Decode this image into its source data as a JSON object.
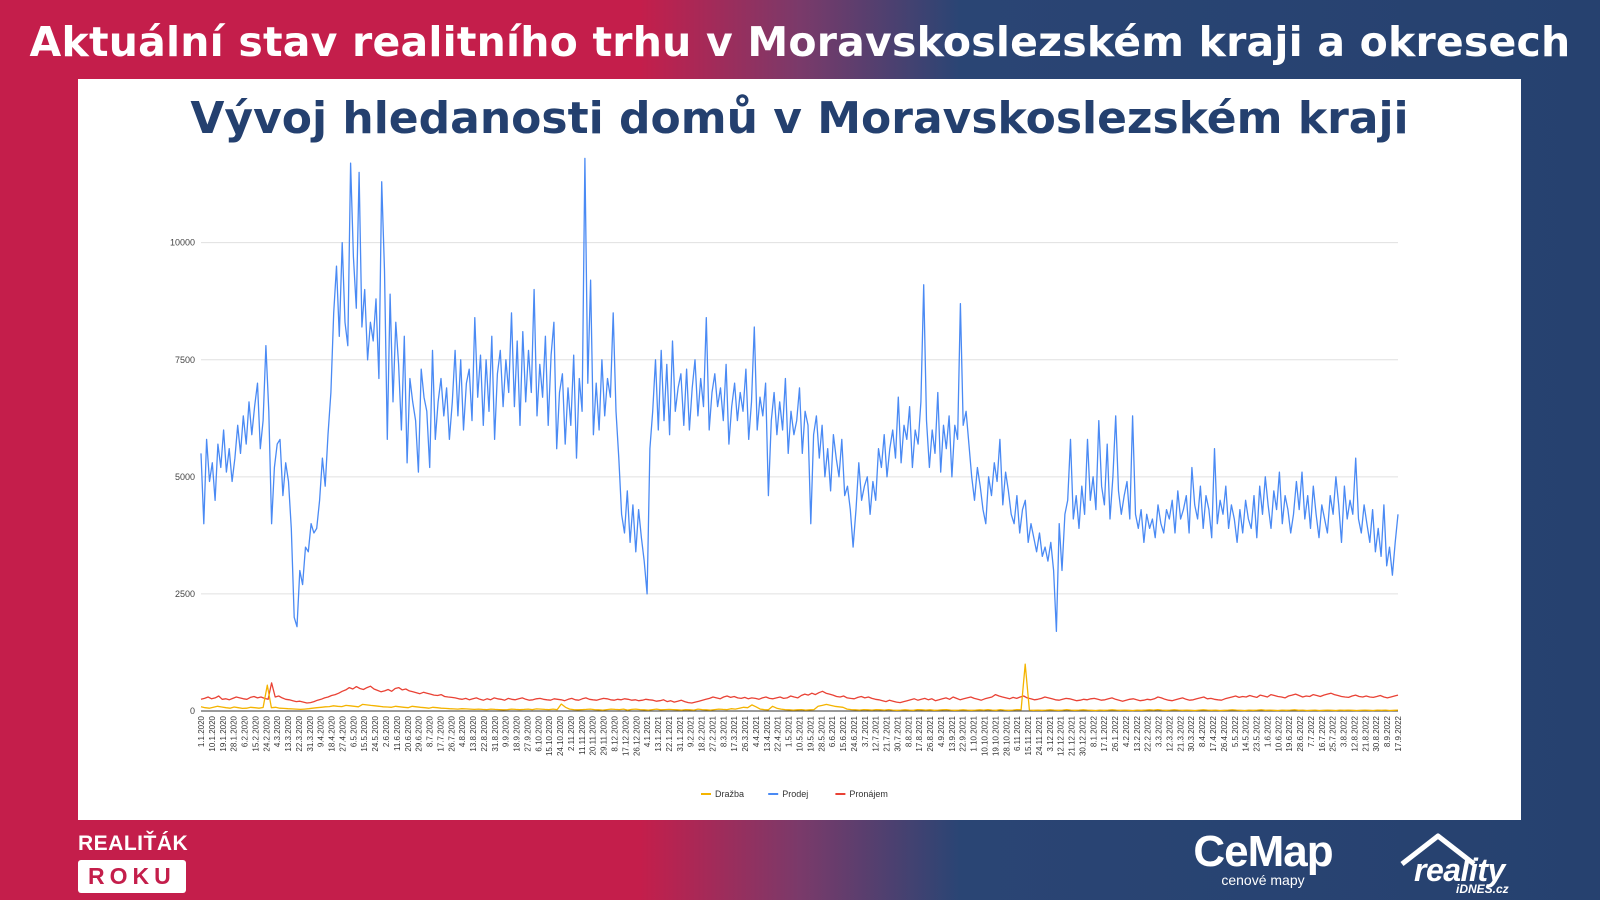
{
  "header": {
    "title": "Aktuální stav realitního trhu v Moravskoslezském kraji a okresech"
  },
  "chart_data": {
    "type": "line",
    "title": "Vývoj hledanosti domů v Moravskoslezském kraji",
    "xlabel": "",
    "ylabel": "",
    "ylim": [
      0,
      12000
    ],
    "yticks": [
      0,
      2500,
      5000,
      7500,
      10000
    ],
    "grid": true,
    "legend_position": "bottom",
    "x_tick_labels": [
      "1.1.2020",
      "10.1.2020",
      "19.1.2020",
      "28.1.2020",
      "6.2.2020",
      "15.2.2020",
      "24.2.2020",
      "4.3.2020",
      "13.3.2020",
      "22.3.2020",
      "31.3.2020",
      "9.4.2020",
      "18.4.2020",
      "27.4.2020",
      "6.5.2020",
      "15.5.2020",
      "24.5.2020",
      "2.6.2020",
      "11.6.2020",
      "20.6.2020",
      "29.6.2020",
      "8.7.2020",
      "17.7.2020",
      "26.7.2020",
      "4.8.2020",
      "13.8.2020",
      "22.8.2020",
      "31.8.2020",
      "9.9.2020",
      "18.9.2020",
      "27.9.2020",
      "6.10.2020",
      "15.10.2020",
      "24.10.2020",
      "2.11.2020",
      "11.11.2020",
      "20.11.2020",
      "29.11.2020",
      "8.12.2020",
      "17.12.2020",
      "26.12.2020",
      "4.1.2021",
      "13.1.2021",
      "22.1.2021",
      "31.1.2021",
      "9.2.2021",
      "18.2.2021",
      "27.2.2021",
      "8.3.2021",
      "17.3.2021",
      "26.3.2021",
      "4.4.2021",
      "13.4.2021",
      "22.4.2021",
      "1.5.2021",
      "10.5.2021",
      "19.5.2021",
      "28.5.2021",
      "6.6.2021",
      "15.6.2021",
      "24.6.2021",
      "3.7.2021",
      "12.7.2021",
      "21.7.2021",
      "30.7.2021",
      "8.8.2021",
      "17.8.2021",
      "26.8.2021",
      "4.9.2021",
      "13.9.2021",
      "22.9.2021",
      "1.10.2021",
      "10.10.2021",
      "19.10.2021",
      "28.10.2021",
      "6.11.2021",
      "15.11.2021",
      "24.11.2021",
      "3.12.2021",
      "12.12.2021",
      "21.12.2021",
      "30.12.2021",
      "8.1.2022",
      "17.1.2022",
      "26.1.2022",
      "4.2.2022",
      "13.2.2022",
      "22.2.2022",
      "3.3.2022",
      "12.3.2022",
      "21.3.2022",
      "30.3.2022",
      "8.4.2022",
      "17.4.2022",
      "26.4.2022",
      "5.5.2022",
      "14.5.2022",
      "23.5.2022",
      "1.6.2022",
      "10.6.2022",
      "19.6.2022",
      "28.6.2022",
      "7.7.2022",
      "16.7.2022",
      "25.7.2022",
      "3.8.2022",
      "12.8.2022",
      "21.8.2022",
      "30.8.2022",
      "8.9.2022",
      "17.9.2022"
    ],
    "series": [
      {
        "name": "Dražba",
        "color": "#f4b400",
        "values": [
          90,
          70,
          60,
          80,
          100,
          85,
          70,
          60,
          85,
          70,
          55,
          60,
          80,
          70,
          60,
          75,
          550,
          70,
          80,
          60,
          55,
          50,
          45,
          40,
          35,
          40,
          50,
          60,
          70,
          80,
          90,
          95,
          110,
          100,
          95,
          120,
          110,
          100,
          90,
          140,
          130,
          120,
          110,
          100,
          90,
          85,
          80,
          100,
          90,
          80,
          70,
          100,
          90,
          80,
          70,
          60,
          80,
          70,
          60,
          55,
          50,
          45,
          40,
          50,
          45,
          40,
          35,
          40,
          35,
          30,
          40,
          35,
          30,
          25,
          30,
          40,
          35,
          30,
          35,
          40,
          30,
          45,
          40,
          35,
          30,
          40,
          30,
          150,
          80,
          40,
          30,
          25,
          30,
          35,
          40,
          30,
          25,
          20,
          30,
          40,
          35,
          30,
          40,
          20,
          35,
          40,
          30,
          25,
          20,
          30,
          40,
          25,
          30,
          35,
          30,
          25,
          20,
          30,
          25,
          20,
          40,
          30,
          25,
          20,
          30,
          40,
          35,
          30,
          50,
          40,
          60,
          80,
          70,
          130,
          90,
          40,
          30,
          25,
          100,
          60,
          40,
          30,
          25,
          20,
          25,
          30,
          20,
          25,
          30,
          100,
          120,
          140,
          120,
          100,
          90,
          80,
          40,
          30,
          25,
          20,
          30,
          25,
          20,
          30,
          25,
          20,
          30,
          20,
          15,
          20,
          25,
          20,
          15,
          30,
          25,
          20,
          25,
          15,
          20,
          25,
          30,
          20,
          15,
          20,
          25,
          20,
          15,
          20,
          25,
          20,
          30,
          20,
          15,
          30,
          20,
          15,
          20,
          30,
          25,
          1000,
          20,
          15,
          20,
          15,
          20,
          25,
          20,
          15,
          20,
          30,
          20,
          15,
          20,
          25,
          20,
          15,
          10,
          20,
          15,
          20,
          25,
          20,
          15,
          20,
          15,
          10,
          20,
          15,
          20,
          25,
          20,
          30,
          20,
          15,
          20,
          25,
          20,
          15,
          20,
          15,
          10,
          20,
          25,
          20,
          15,
          20,
          10,
          15,
          20,
          25,
          20,
          15,
          10,
          20,
          15,
          20,
          25,
          15,
          20,
          15,
          10,
          20,
          15,
          20,
          25,
          15,
          20,
          10,
          15,
          20,
          10,
          15,
          20,
          15,
          10,
          20,
          15,
          20,
          15,
          10,
          15,
          20,
          15,
          10,
          20,
          15,
          20,
          10,
          15,
          20
        ]
      },
      {
        "name": "Prodej",
        "color": "#4a8af4",
        "values": [
          5500,
          4000,
          5800,
          4900,
          5300,
          4500,
          5700,
          5200,
          6000,
          5100,
          5600,
          4900,
          5400,
          6100,
          5500,
          6300,
          5700,
          6600,
          5900,
          6500,
          7000,
          5600,
          6200,
          7800,
          6400,
          4000,
          5200,
          5700,
          5800,
          4600,
          5300,
          4900,
          3900,
          2000,
          1800,
          3000,
          2700,
          3500,
          3400,
          4000,
          3800,
          3900,
          4500,
          5400,
          4800,
          5900,
          6800,
          8500,
          9500,
          8000,
          10000,
          8300,
          7800,
          11700,
          9700,
          8600,
          11500,
          8200,
          9000,
          7500,
          8300,
          7900,
          8800,
          7100,
          11300,
          9400,
          5800,
          8900,
          6600,
          8300,
          7400,
          6000,
          8000,
          5300,
          7100,
          6600,
          6200,
          5100,
          7300,
          6700,
          6400,
          5200,
          7700,
          5800,
          6600,
          7100,
          6300,
          6900,
          5800,
          6600,
          7700,
          6300,
          7500,
          6000,
          7000,
          7300,
          6200,
          8400,
          6700,
          7600,
          6100,
          7500,
          6400,
          8000,
          5800,
          7200,
          7700,
          6500,
          7500,
          6800,
          8500,
          6500,
          7900,
          6100,
          8100,
          6600,
          7700,
          6800,
          9000,
          6300,
          7400,
          6700,
          8000,
          6100,
          7600,
          8300,
          5600,
          6800,
          7200,
          5700,
          6900,
          6100,
          7600,
          5400,
          7100,
          6400,
          11800,
          7000,
          9200,
          5900,
          7000,
          6000,
          7500,
          6300,
          7100,
          6700,
          8500,
          6400,
          5400,
          4200,
          3800,
          4700,
          3600,
          4400,
          3400,
          4300,
          3700,
          3200,
          2500,
          5600,
          6400,
          7500,
          6000,
          7700,
          6200,
          7400,
          5900,
          7900,
          6400,
          6900,
          7200,
          6100,
          7300,
          6000,
          6900,
          7500,
          6300,
          7100,
          6500,
          8400,
          6000,
          6800,
          7200,
          6500,
          6900,
          6200,
          7400,
          5700,
          6500,
          7000,
          6200,
          6800,
          6400,
          7300,
          5800,
          6600,
          8200,
          6000,
          6700,
          6300,
          7000,
          4600,
          6200,
          6800,
          5900,
          6600,
          6000,
          7100,
          5500,
          6400,
          5900,
          6200,
          6900,
          5500,
          6400,
          6100,
          4000,
          5900,
          6300,
          5400,
          6100,
          5000,
          5600,
          4700,
          5900,
          5400,
          5000,
          5800,
          4600,
          4800,
          4300,
          3500,
          4300,
          5300,
          4500,
          4800,
          5000,
          4200,
          4900,
          4500,
          5600,
          5200,
          5900,
          5000,
          5600,
          6000,
          5400,
          6700,
          5300,
          6100,
          5800,
          6500,
          5200,
          6000,
          5700,
          6600,
          9100,
          6200,
          5200,
          6000,
          5500,
          6800,
          5100,
          6100,
          5600,
          6300,
          5000,
          6100,
          5800,
          8700,
          6100,
          6400,
          5700,
          5000,
          4500,
          5200,
          4800,
          4300,
          4000,
          5000,
          4600,
          5300,
          4900,
          5800,
          4400,
          5100,
          4700,
          4200,
          4000,
          4600,
          3800,
          4300,
          4500,
          3600,
          4000,
          3700,
          3400,
          3800,
          3300,
          3500,
          3200,
          3600,
          3000,
          1700,
          4000,
          3000,
          4200,
          4500,
          5800,
          4100,
          4600,
          3900,
          4800,
          4200,
          5800,
          4500,
          5000,
          4300,
          6200,
          4800,
          4400,
          5700,
          4100,
          5000,
          6300,
          4700,
          4200,
          4600,
          4900,
          4100,
          6300,
          4200,
          3900,
          4300,
          3600,
          4200,
          3900,
          4100,
          3700,
          4400,
          4000,
          3800,
          4300,
          4100,
          4500,
          3800,
          4700,
          4100,
          4300,
          4600,
          3800,
          5200,
          4400,
          4100,
          4800,
          3900,
          4600,
          4300,
          3700,
          5600,
          4000,
          4500,
          4200,
          4800,
          3900,
          4400,
          4100,
          3600,
          4300,
          3800,
          4500,
          4100,
          3900,
          4600,
          3700,
          4800,
          4200,
          5000,
          4400,
          3900,
          4700,
          4300,
          5100,
          4000,
          4600,
          4300,
          3800,
          4200,
          4900,
          4300,
          5100,
          4100,
          4600,
          3900,
          4800,
          4200,
          3700,
          4400,
          4100,
          3800,
          4600,
          4200,
          5000,
          4400,
          3600,
          4800,
          4100,
          4500,
          4200,
          5400,
          4100,
          3800,
          4400,
          4000,
          3600,
          4300,
          3400,
          3900,
          3300,
          4400,
          3100,
          3500,
          2900,
          3600,
          4200
        ]
      },
      {
        "name": "Pronájem",
        "color": "#e94235",
        "values": [
          250,
          270,
          300,
          260,
          280,
          320,
          250,
          260,
          240,
          270,
          300,
          280,
          260,
          250,
          290,
          310,
          280,
          300,
          270,
          250,
          600,
          300,
          320,
          280,
          250,
          240,
          220,
          200,
          210,
          190,
          170,
          180,
          200,
          230,
          250,
          280,
          300,
          330,
          350,
          380,
          420,
          450,
          500,
          470,
          520,
          480,
          460,
          500,
          530,
          470,
          440,
          410,
          430,
          460,
          420,
          480,
          500,
          450,
          470,
          430,
          410,
          390,
          370,
          400,
          380,
          360,
          340,
          330,
          350,
          310,
          300,
          290,
          280,
          260,
          250,
          270,
          240,
          260,
          280,
          250,
          230,
          260,
          240,
          280,
          260,
          250,
          230,
          270,
          250,
          240,
          260,
          280,
          250,
          230,
          240,
          260,
          270,
          250,
          240,
          230,
          260,
          250,
          240,
          220,
          250,
          270,
          240,
          230,
          260,
          280,
          250,
          240,
          230,
          250,
          270,
          260,
          240,
          230,
          250,
          240,
          260,
          250,
          230,
          240,
          220,
          230,
          250,
          240,
          230,
          210,
          220,
          240,
          200,
          220,
          190,
          210,
          230,
          200,
          180,
          170,
          190,
          210,
          230,
          250,
          270,
          300,
          280,
          260,
          300,
          320,
          290,
          310,
          280,
          270,
          290,
          260,
          280,
          270,
          250,
          280,
          300,
          270,
          260,
          280,
          300,
          270,
          280,
          320,
          300,
          280,
          330,
          360,
          340,
          380,
          350,
          390,
          420,
          380,
          360,
          340,
          310,
          300,
          320,
          280,
          270,
          260,
          290,
          310,
          280,
          300,
          270,
          250,
          240,
          220,
          200,
          230,
          210,
          190,
          180,
          200,
          220,
          240,
          260,
          230,
          250,
          270,
          240,
          260,
          220,
          240,
          260,
          280,
          250,
          300,
          270,
          240,
          260,
          280,
          300,
          270,
          250,
          230,
          260,
          280,
          300,
          350,
          320,
          300,
          280,
          260,
          290,
          270,
          300,
          320,
          280,
          260,
          240,
          250,
          270,
          300,
          280,
          260,
          240,
          230,
          250,
          270,
          260,
          240,
          220,
          230,
          250,
          240,
          260,
          270,
          250,
          230,
          240,
          260,
          280,
          250,
          230,
          210,
          230,
          250,
          260,
          240,
          220,
          230,
          250,
          240,
          260,
          300,
          280,
          250,
          230,
          220,
          240,
          260,
          280,
          250,
          230,
          240,
          260,
          280,
          300,
          260,
          270,
          250,
          240,
          230,
          260,
          280,
          300,
          320,
          290,
          310,
          300,
          330,
          310,
          290,
          340,
          320,
          300,
          350,
          330,
          310,
          300,
          280,
          320,
          340,
          360,
          330,
          300,
          320,
          310,
          350,
          330,
          310,
          340,
          360,
          380,
          350,
          330,
          310,
          300,
          290,
          320,
          340,
          310,
          300,
          320,
          300,
          290,
          310,
          330,
          300,
          280,
          300,
          320,
          340
        ]
      }
    ]
  },
  "brands": {
    "left_line1": "REALIŤÁK",
    "left_line2": "ROKU",
    "cemap_name": "CeMap",
    "cemap_sub": "cenové mapy",
    "reality_name": "reality",
    "reality_sub": "iDNES.cz"
  }
}
